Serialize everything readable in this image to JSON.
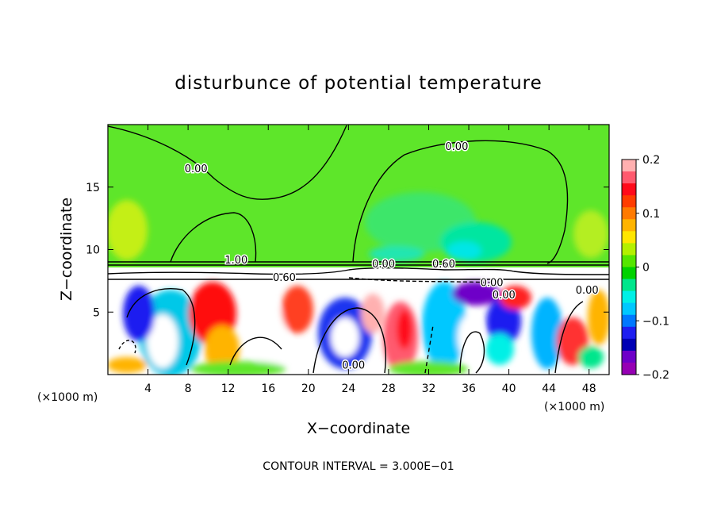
{
  "chart_data": {
    "type": "heatmap",
    "title": "disturbunce of potential temperature",
    "xlabel": "X−coordinate",
    "ylabel": "Z−coordinate",
    "x_unit_left": "(×1000 m)",
    "x_unit_right": "(×1000 m)",
    "footer": "CONTOUR INTERVAL = 3.000E−01",
    "xlim": [
      0,
      50
    ],
    "ylim": [
      0,
      20
    ],
    "x_ticks": [
      4,
      8,
      12,
      16,
      20,
      24,
      28,
      32,
      36,
      40,
      44,
      48
    ],
    "x_tick_labels": [
      "4",
      "8",
      "12",
      "16",
      "20",
      "24",
      "28",
      "32",
      "36",
      "40",
      "44",
      "48"
    ],
    "y_ticks": [
      5,
      10,
      15
    ],
    "y_tick_labels": [
      "5",
      "10",
      "15"
    ],
    "colorbar": {
      "range": [
        -0.2,
        0.2
      ],
      "tick_values": [
        0.2,
        0.1,
        0,
        -0.1,
        -0.2
      ],
      "tick_labels": [
        "0.2",
        "0.1",
        "0",
        "−0.1",
        "−0.2"
      ],
      "colors": [
        "#ffb0b0",
        "#ff5a6e",
        "#ff0a1a",
        "#ff3c00",
        "#ff7a00",
        "#ffb400",
        "#ffe600",
        "#b4f000",
        "#55e600",
        "#00d200",
        "#00e68c",
        "#00f0e6",
        "#00c8ff",
        "#0078ff",
        "#1e1ef0",
        "#0000b4",
        "#6e00c8",
        "#9600b4"
      ]
    },
    "contour_labels": [
      {
        "text": "0.00",
        "x": 8.8,
        "z": 16.5
      },
      {
        "text": "0.00",
        "x": 34.8,
        "z": 18.3
      },
      {
        "text": "1.00",
        "x": 12.8,
        "z": 9.2
      },
      {
        "text": "0.00",
        "x": 27.5,
        "z": 8.9
      },
      {
        "text": "0.60",
        "x": 17.6,
        "z": 7.8
      },
      {
        "text": "0.60",
        "x": 33.5,
        "z": 8.9
      },
      {
        "text": "0.00",
        "x": 38.3,
        "z": 7.4
      },
      {
        "text": "0.00",
        "x": 39.5,
        "z": 6.4
      },
      {
        "text": "0.00",
        "x": 24.5,
        "z": 0.8
      },
      {
        "text": "0.00",
        "x": 47.8,
        "z": 6.8
      }
    ],
    "grid": false
  },
  "colors": {
    "green_field": "#5ee62a",
    "contour": "#000000"
  }
}
